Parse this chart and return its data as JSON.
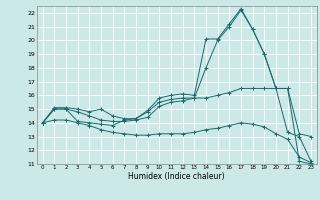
{
  "xlabel": "Humidex (Indice chaleur)",
  "background_color": "#cce8e8",
  "grid_color": "#ffffff",
  "line_color": "#1a6b6b",
  "xlim": [
    -0.5,
    23.5
  ],
  "ylim": [
    11,
    22.5
  ],
  "xticks": [
    0,
    1,
    2,
    3,
    4,
    5,
    6,
    7,
    8,
    9,
    10,
    11,
    12,
    13,
    14,
    15,
    16,
    17,
    18,
    19,
    20,
    21,
    22,
    23
  ],
  "yticks": [
    11,
    12,
    13,
    14,
    15,
    16,
    17,
    18,
    19,
    20,
    21,
    22
  ],
  "line1_x": [
    0,
    1,
    2,
    3,
    4,
    5,
    6,
    7,
    8,
    9,
    10,
    11,
    12,
    13,
    14,
    15,
    16,
    17,
    18,
    19,
    20,
    21,
    22,
    23
  ],
  "line1_y": [
    14.0,
    15.1,
    15.1,
    15.0,
    14.8,
    15.0,
    14.5,
    14.3,
    14.3,
    14.9,
    15.8,
    16.0,
    16.1,
    16.0,
    20.1,
    20.1,
    21.2,
    22.3,
    20.8,
    19.0,
    16.5,
    16.5,
    13.2,
    13.0
  ],
  "line2_x": [
    0,
    1,
    2,
    3,
    4,
    5,
    6,
    7,
    8,
    9,
    10,
    11,
    12,
    13,
    14,
    15,
    16,
    17,
    18,
    19,
    20,
    21,
    22,
    23
  ],
  "line2_y": [
    14.0,
    15.0,
    15.0,
    14.1,
    14.0,
    13.9,
    13.8,
    14.2,
    14.3,
    14.8,
    15.5,
    15.7,
    15.8,
    15.8,
    18.0,
    20.0,
    21.0,
    22.2,
    20.8,
    19.0,
    16.5,
    16.5,
    11.2,
    11.0
  ],
  "line3_x": [
    0,
    1,
    2,
    3,
    4,
    5,
    6,
    7,
    8,
    9,
    10,
    11,
    12,
    13,
    14,
    15,
    16,
    17,
    18,
    19,
    20,
    21,
    22,
    23
  ],
  "line3_y": [
    14.0,
    15.0,
    15.0,
    14.8,
    14.5,
    14.2,
    14.1,
    14.1,
    14.2,
    14.4,
    15.2,
    15.5,
    15.6,
    15.8,
    15.8,
    16.0,
    16.2,
    16.5,
    16.5,
    16.5,
    16.5,
    13.3,
    13.0,
    11.2
  ],
  "line4_x": [
    0,
    1,
    2,
    3,
    4,
    5,
    6,
    7,
    8,
    9,
    10,
    11,
    12,
    13,
    14,
    15,
    16,
    17,
    18,
    19,
    20,
    21,
    22,
    23
  ],
  "line4_y": [
    14.0,
    14.2,
    14.2,
    14.0,
    13.8,
    13.5,
    13.3,
    13.2,
    13.1,
    13.1,
    13.2,
    13.2,
    13.2,
    13.3,
    13.5,
    13.6,
    13.8,
    14.0,
    13.9,
    13.7,
    13.2,
    12.8,
    11.5,
    11.1
  ]
}
